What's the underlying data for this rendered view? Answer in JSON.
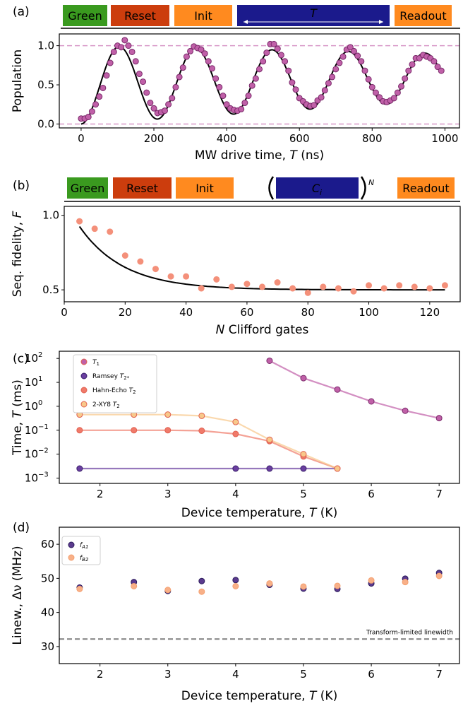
{
  "colors": {
    "green": "#3a9a1f",
    "reset": "#cc3d0d",
    "init": "#ff8a1f",
    "ci": "#1b1a8c",
    "readout": "#ff8a1f",
    "rabi_point": "#c060a8",
    "rb_point": "#f4907a",
    "t1": "#c060a8",
    "ramsey": "#6a3fa0",
    "hahn": "#f07a6a",
    "xy8": "#f8c88a",
    "fa1": "#5b3a8e",
    "fb2": "#f8b088",
    "dashed_pink": "#d898c8",
    "dashed_gray": "#808080"
  },
  "panels": {
    "a": {
      "label": "(a)",
      "pulses": [
        "Green",
        "Reset",
        "Init",
        "T",
        "Readout"
      ]
    },
    "b": {
      "label": "(b)",
      "pulses": [
        "Green",
        "Reset",
        "Init",
        "C",
        "i",
        "N",
        "Readout"
      ]
    },
    "c": {
      "label": "(c)"
    },
    "d": {
      "label": "(d)",
      "annotation": "Transform-limited linewidth"
    }
  },
  "chart_data": [
    {
      "id": "a",
      "type": "scatter",
      "xlabel_pre": "MW drive time, ",
      "xlabel_var": "T",
      "xlabel_post": " (ns)",
      "ylabel": "Population",
      "xlim": [
        -60,
        1040
      ],
      "ylim": [
        -0.05,
        1.15
      ],
      "xticks": [
        0,
        200,
        400,
        600,
        800,
        1000
      ],
      "xtick_labels": [
        "0",
        "200",
        "400",
        "600",
        "800",
        "1000"
      ],
      "yticks": [
        0.0,
        0.5,
        1.0
      ],
      "ytick_labels": [
        "0.0",
        "0.5",
        "1.0"
      ],
      "reference_lines": [
        0,
        1
      ],
      "points": [
        [
          0,
          0.07
        ],
        [
          10,
          0.07
        ],
        [
          20,
          0.09
        ],
        [
          30,
          0.16
        ],
        [
          40,
          0.25
        ],
        [
          50,
          0.35
        ],
        [
          60,
          0.46
        ],
        [
          70,
          0.62
        ],
        [
          80,
          0.78
        ],
        [
          90,
          0.92
        ],
        [
          100,
          1.0
        ],
        [
          110,
          0.98
        ],
        [
          120,
          1.07
        ],
        [
          130,
          1.0
        ],
        [
          140,
          0.92
        ],
        [
          150,
          0.8
        ],
        [
          160,
          0.64
        ],
        [
          170,
          0.54
        ],
        [
          180,
          0.4
        ],
        [
          190,
          0.27
        ],
        [
          200,
          0.2
        ],
        [
          210,
          0.14
        ],
        [
          220,
          0.15
        ],
        [
          230,
          0.17
        ],
        [
          240,
          0.25
        ],
        [
          250,
          0.33
        ],
        [
          260,
          0.47
        ],
        [
          270,
          0.6
        ],
        [
          280,
          0.72
        ],
        [
          290,
          0.86
        ],
        [
          300,
          0.93
        ],
        [
          310,
          0.99
        ],
        [
          320,
          0.97
        ],
        [
          330,
          0.95
        ],
        [
          340,
          0.9
        ],
        [
          350,
          0.8
        ],
        [
          360,
          0.71
        ],
        [
          370,
          0.58
        ],
        [
          380,
          0.47
        ],
        [
          390,
          0.36
        ],
        [
          400,
          0.25
        ],
        [
          410,
          0.2
        ],
        [
          420,
          0.18
        ],
        [
          430,
          0.17
        ],
        [
          440,
          0.19
        ],
        [
          450,
          0.27
        ],
        [
          460,
          0.36
        ],
        [
          470,
          0.49
        ],
        [
          480,
          0.58
        ],
        [
          490,
          0.7
        ],
        [
          500,
          0.8
        ],
        [
          510,
          0.91
        ],
        [
          520,
          1.02
        ],
        [
          530,
          1.02
        ],
        [
          540,
          0.96
        ],
        [
          550,
          0.88
        ],
        [
          560,
          0.8
        ],
        [
          570,
          0.68
        ],
        [
          580,
          0.53
        ],
        [
          590,
          0.44
        ],
        [
          600,
          0.33
        ],
        [
          610,
          0.29
        ],
        [
          620,
          0.25
        ],
        [
          630,
          0.23
        ],
        [
          640,
          0.24
        ],
        [
          650,
          0.3
        ],
        [
          660,
          0.34
        ],
        [
          670,
          0.43
        ],
        [
          680,
          0.52
        ],
        [
          690,
          0.6
        ],
        [
          700,
          0.7
        ],
        [
          710,
          0.78
        ],
        [
          720,
          0.86
        ],
        [
          730,
          0.95
        ],
        [
          740,
          0.98
        ],
        [
          750,
          0.93
        ],
        [
          760,
          0.87
        ],
        [
          770,
          0.8
        ],
        [
          780,
          0.68
        ],
        [
          790,
          0.57
        ],
        [
          800,
          0.47
        ],
        [
          810,
          0.4
        ],
        [
          820,
          0.34
        ],
        [
          830,
          0.29
        ],
        [
          840,
          0.28
        ],
        [
          850,
          0.3
        ],
        [
          860,
          0.33
        ],
        [
          870,
          0.4
        ],
        [
          880,
          0.48
        ],
        [
          890,
          0.58
        ],
        [
          900,
          0.68
        ],
        [
          910,
          0.76
        ],
        [
          920,
          0.84
        ],
        [
          930,
          0.84
        ],
        [
          940,
          0.88
        ],
        [
          950,
          0.86
        ],
        [
          960,
          0.84
        ],
        [
          970,
          0.8
        ],
        [
          980,
          0.73
        ],
        [
          990,
          0.68
        ]
      ],
      "fit": {
        "model": "damped_sine",
        "period": 210,
        "offset_start": 0.5,
        "offset_end": 0.6,
        "amp_start": 0.5,
        "amp_end": 0.3,
        "x_range": [
          0,
          990
        ]
      }
    },
    {
      "id": "b",
      "type": "scatter",
      "xlabel_pre": "",
      "xlabel_var": "N",
      "xlabel_post": " Clifford gates",
      "ylabel": "Seq. fidelity, ",
      "ylabel_var": "F",
      "xlim": [
        0,
        130
      ],
      "ylim": [
        0.42,
        1.06
      ],
      "xticks": [
        0,
        20,
        40,
        60,
        80,
        100,
        120
      ],
      "xtick_labels": [
        "0",
        "20",
        "40",
        "60",
        "80",
        "100",
        "120"
      ],
      "yticks": [
        0.5,
        1.0
      ],
      "ytick_labels": [
        "0.5",
        "1.0"
      ],
      "points": [
        [
          5,
          0.96
        ],
        [
          10,
          0.91
        ],
        [
          15,
          0.89
        ],
        [
          20,
          0.73
        ],
        [
          25,
          0.69
        ],
        [
          30,
          0.64
        ],
        [
          35,
          0.59
        ],
        [
          40,
          0.59
        ],
        [
          45,
          0.51
        ],
        [
          50,
          0.57
        ],
        [
          55,
          0.52
        ],
        [
          60,
          0.54
        ],
        [
          65,
          0.52
        ],
        [
          70,
          0.55
        ],
        [
          75,
          0.51
        ],
        [
          80,
          0.48
        ],
        [
          85,
          0.52
        ],
        [
          90,
          0.51
        ],
        [
          95,
          0.49
        ],
        [
          100,
          0.53
        ],
        [
          105,
          0.51
        ],
        [
          110,
          0.53
        ],
        [
          115,
          0.52
        ],
        [
          120,
          0.51
        ],
        [
          125,
          0.53
        ]
      ],
      "fit": {
        "model": "exp_decay",
        "A": 0.6,
        "n0": 14.5,
        "C": 0.5,
        "x_range": [
          5,
          125
        ]
      }
    },
    {
      "id": "c",
      "type": "line",
      "xlabel_pre": "Device temperature, ",
      "xlabel_var": "T",
      "xlabel_post": " (K)",
      "ylabel": "Time, ",
      "ylabel_var": "T",
      "ylabel_post": " (ms)",
      "yscale": "log",
      "xlim": [
        1.4,
        7.3
      ],
      "ylim": [
        0.0006,
        200
      ],
      "xticks": [
        2,
        3,
        4,
        5,
        6,
        7
      ],
      "xtick_labels": [
        "2",
        "3",
        "4",
        "5",
        "6",
        "7"
      ],
      "yticks": [
        0.001,
        0.01,
        0.1,
        1,
        10,
        100
      ],
      "ytick_labels": [
        "10",
        "10",
        "10",
        "10",
        "10",
        "10"
      ],
      "ytick_exps": [
        "−3",
        "−2",
        "−1",
        "0",
        "1",
        "2"
      ],
      "legend": {
        "placement": "upper-left"
      },
      "series": [
        {
          "name": "T",
          "name_sub": "1",
          "color_key": "t1",
          "x": [
            4.5,
            5.0,
            5.5,
            6.0,
            6.5,
            7.0
          ],
          "y": [
            80,
            15,
            5,
            1.6,
            0.65,
            0.32
          ]
        },
        {
          "name": "Ramsey ",
          "name_var": "T",
          "name_sub": "2*",
          "color_key": "ramsey",
          "x": [
            1.7,
            4.0,
            4.5,
            5.0
          ],
          "y": [
            0.0025,
            0.0025,
            0.0025,
            0.0025
          ],
          "fit_x": [
            1.7,
            5.5
          ]
        },
        {
          "name": "Hahn-Echo ",
          "name_var": "T",
          "name_sub": "2",
          "color_key": "hahn",
          "x": [
            1.7,
            2.5,
            3.0,
            3.5,
            4.0,
            4.5,
            5.0,
            5.5
          ],
          "y": [
            0.1,
            0.1,
            0.1,
            0.095,
            0.07,
            0.035,
            0.008,
            0.0025
          ]
        },
        {
          "name": "2-XY8 ",
          "name_var": "T",
          "name_sub": "2",
          "color_key": "xy8",
          "x": [
            1.7,
            2.5,
            3.0,
            3.5,
            4.0,
            4.5,
            5.0,
            5.5
          ],
          "y": [
            0.45,
            0.45,
            0.45,
            0.4,
            0.22,
            0.04,
            0.01,
            0.0025
          ]
        }
      ]
    },
    {
      "id": "d",
      "type": "scatter",
      "xlabel_pre": "Device temperature, ",
      "xlabel_var": "T",
      "xlabel_post": " (K)",
      "ylabel": "Linew., Δν (MHz)",
      "xlim": [
        1.4,
        7.3
      ],
      "ylim": [
        25,
        65
      ],
      "xticks": [
        2,
        3,
        4,
        5,
        6,
        7
      ],
      "xtick_labels": [
        "2",
        "3",
        "4",
        "5",
        "6",
        "7"
      ],
      "yticks": [
        30,
        40,
        50,
        60
      ],
      "ytick_labels": [
        "30",
        "40",
        "50",
        "60"
      ],
      "reference_line": 32.2,
      "legend": {
        "placement": "upper-left"
      },
      "series": [
        {
          "name": "f",
          "name_sub": "A1",
          "color_key": "fa1",
          "x": [
            1.7,
            2.5,
            3.0,
            3.5,
            4.0,
            4.5,
            5.0,
            5.5,
            6.0,
            6.5,
            7.0
          ],
          "y": [
            47.3,
            48.9,
            46.3,
            49.2,
            49.5,
            48.1,
            47.0,
            46.9,
            48.5,
            49.9,
            51.6
          ]
        },
        {
          "name": "f",
          "name_sub": "B2",
          "color_key": "fb2",
          "x": [
            1.7,
            2.5,
            3.0,
            3.5,
            4.0,
            4.5,
            5.0,
            5.5,
            6.0,
            6.5,
            7.0
          ],
          "y": [
            46.9,
            47.7,
            46.6,
            46.1,
            47.7,
            48.5,
            47.6,
            47.8,
            49.4,
            48.9,
            50.7
          ]
        }
      ]
    }
  ]
}
